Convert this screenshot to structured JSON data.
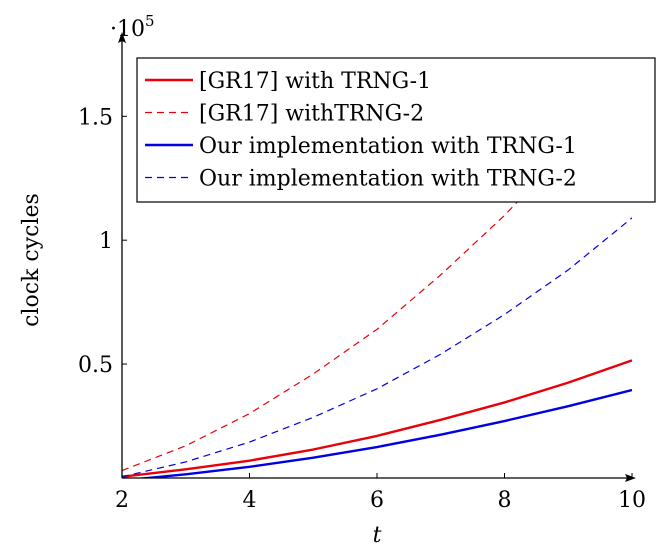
{
  "chart_data": {
    "type": "line",
    "xlabel": "t",
    "ylabel": "clock cycles",
    "y_scale_label": "·10",
    "y_scale_exponent": "5",
    "xlim": [
      2,
      10
    ],
    "ylim": [
      0.04,
      1.8
    ],
    "x_ticks": [
      {
        "value": 2,
        "label": "2"
      },
      {
        "value": 4,
        "label": "4"
      },
      {
        "value": 6,
        "label": "6"
      },
      {
        "value": 8,
        "label": "8"
      },
      {
        "value": 10,
        "label": "10"
      }
    ],
    "y_ticks": [
      {
        "value": 0.5,
        "label": "0.5"
      },
      {
        "value": 1.0,
        "label": "1"
      },
      {
        "value": 1.5,
        "label": "1.5"
      }
    ],
    "legend_position": "top-right",
    "series": [
      {
        "name": "[GR17] with TRNG-1",
        "color": "#e8000b",
        "dash": "solid",
        "x": [
          2,
          3,
          4,
          5,
          6,
          7,
          8,
          9,
          10
        ],
        "y": [
          0.045,
          0.075,
          0.11,
          0.155,
          0.21,
          0.275,
          0.345,
          0.425,
          0.515
        ]
      },
      {
        "name": "[GR17] withTRNG-2",
        "color": "#e8000b",
        "dash": "dashed",
        "x": [
          2,
          3,
          4,
          5,
          6,
          7,
          8,
          9,
          10
        ],
        "y": [
          0.07,
          0.17,
          0.3,
          0.46,
          0.64,
          0.86,
          1.1,
          1.37,
          1.66
        ]
      },
      {
        "name": "Our implementation with TRNG-1",
        "color": "#0000e0",
        "dash": "solid",
        "x": [
          2,
          3,
          4,
          5,
          6,
          7,
          8,
          9,
          10
        ],
        "y": [
          0.03,
          0.055,
          0.085,
          0.122,
          0.165,
          0.215,
          0.27,
          0.33,
          0.395
        ]
      },
      {
        "name": "Our implementation with TRNG-2",
        "color": "#0000e0",
        "dash": "dashed",
        "x": [
          2,
          3,
          4,
          5,
          6,
          7,
          8,
          9,
          10
        ],
        "y": [
          0.045,
          0.105,
          0.185,
          0.285,
          0.4,
          0.54,
          0.7,
          0.88,
          1.09
        ]
      }
    ]
  }
}
